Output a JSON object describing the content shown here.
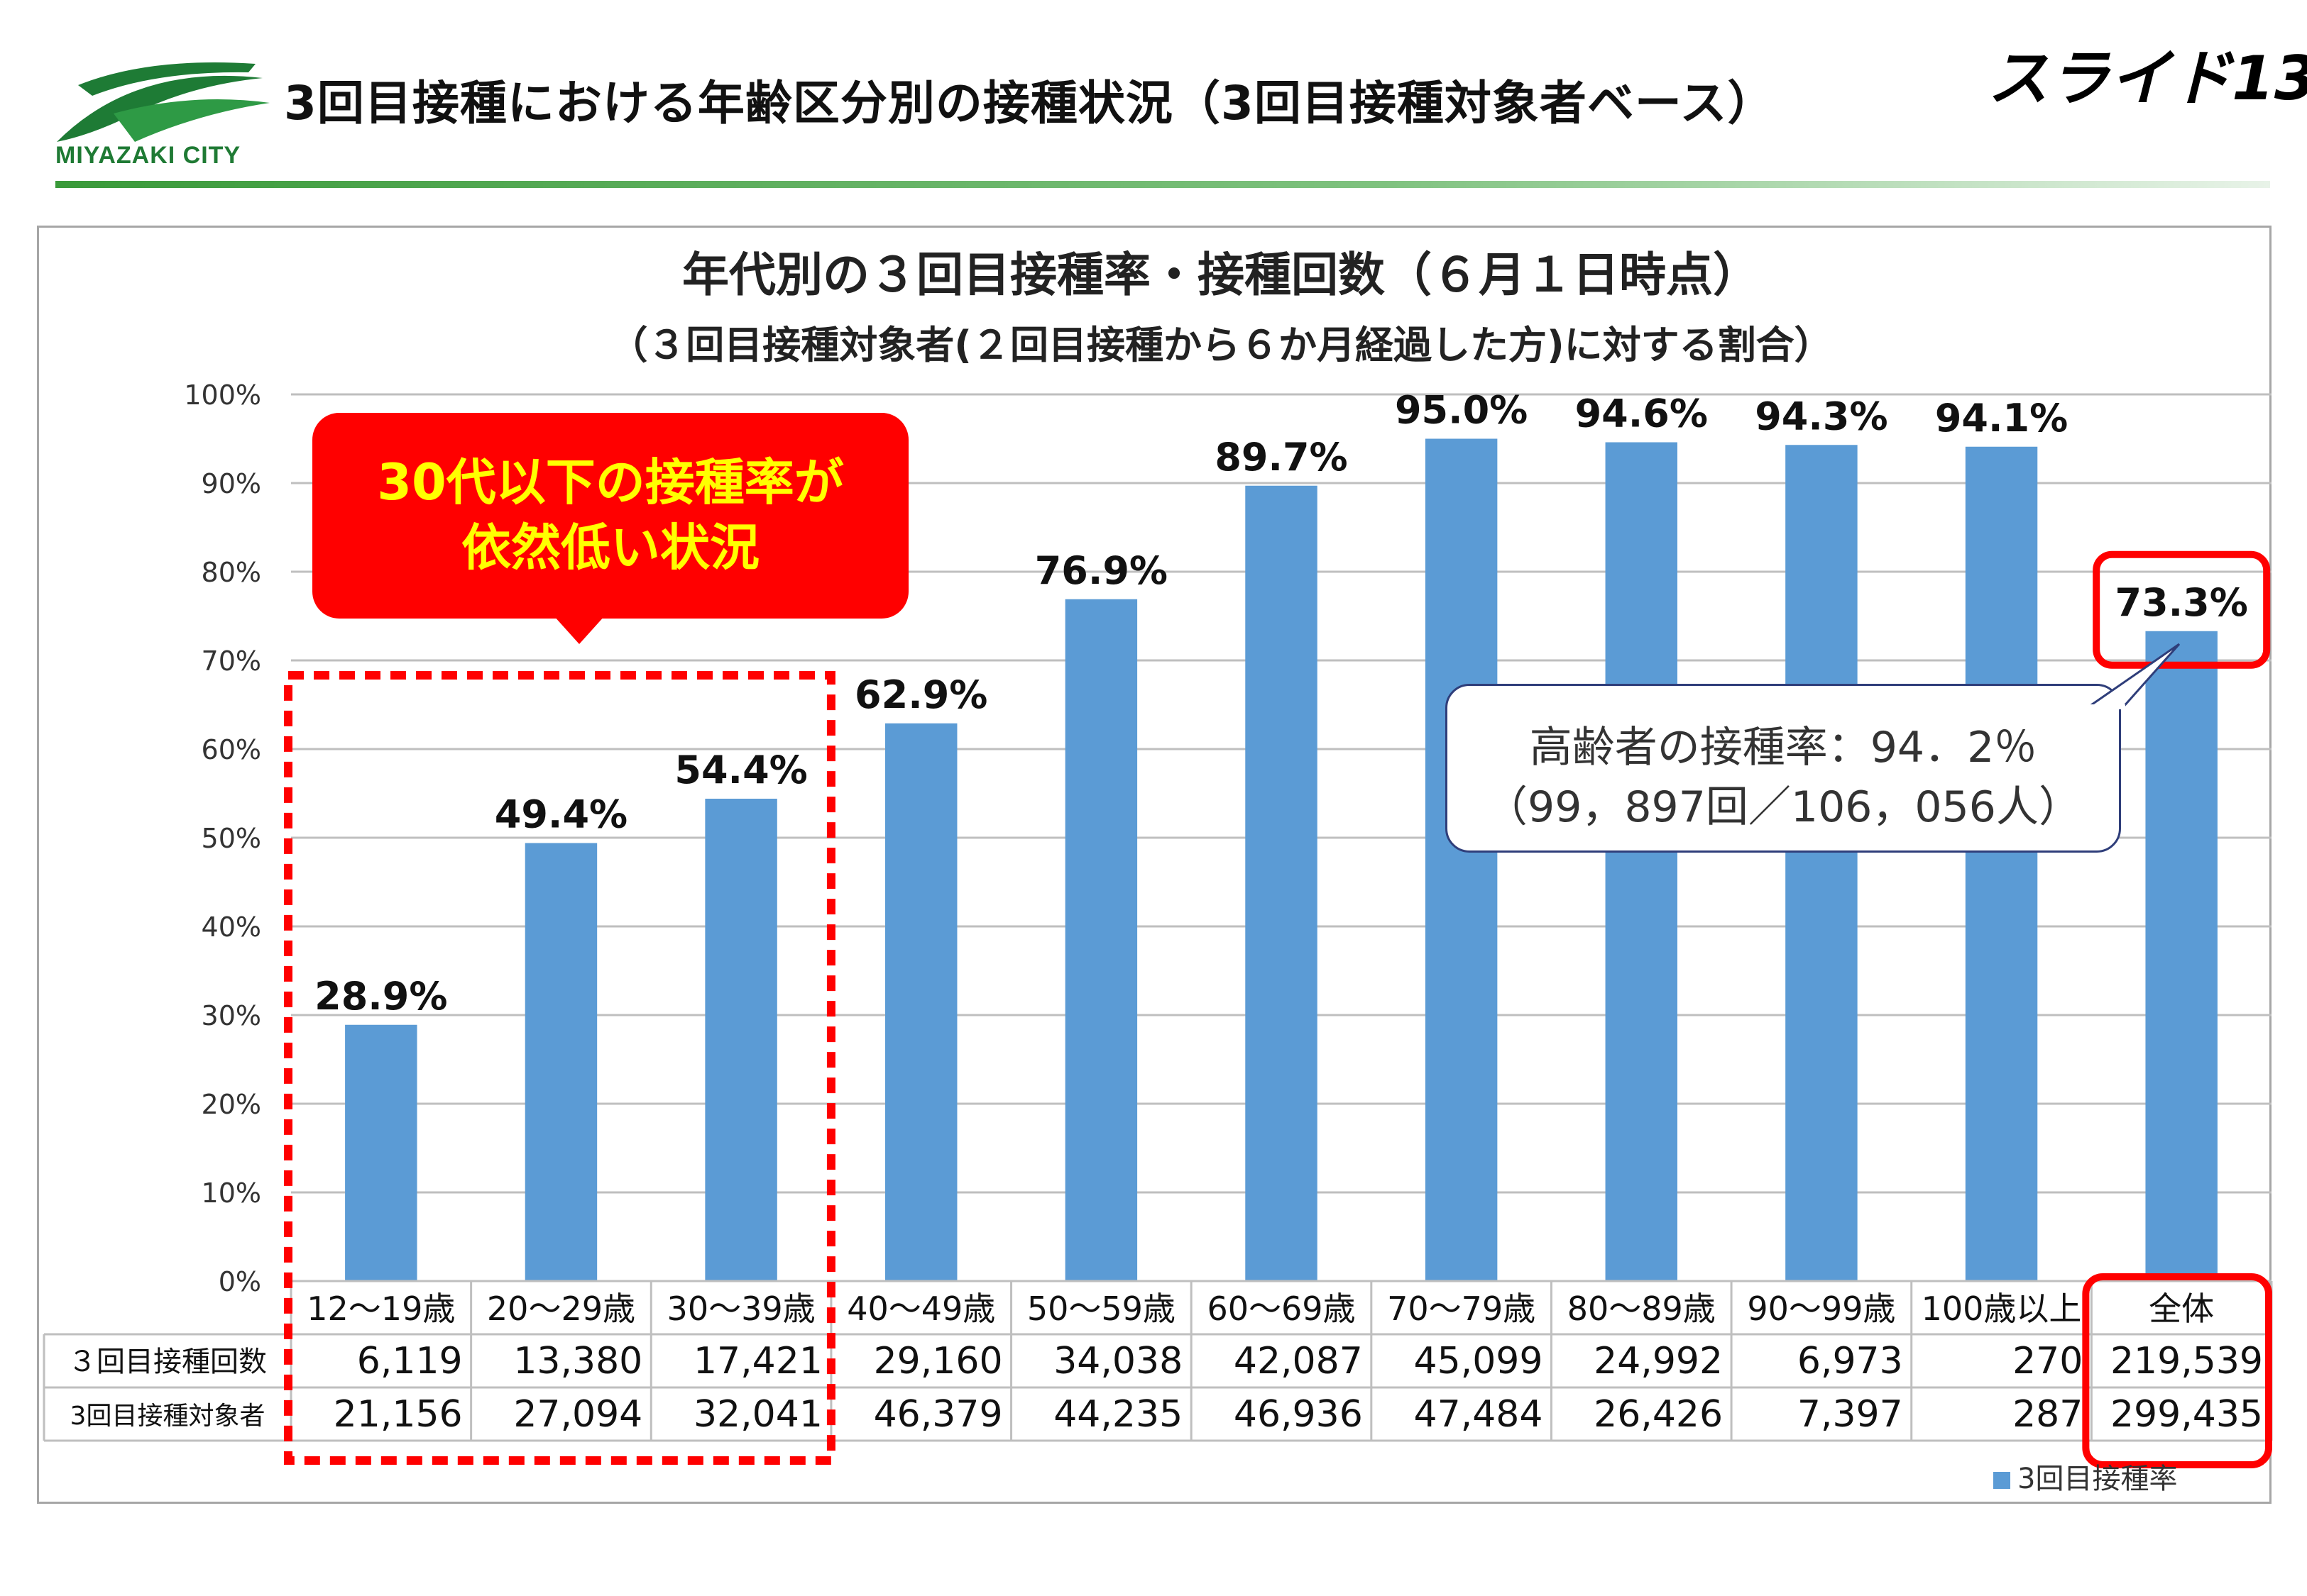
{
  "header": {
    "title": "3回目接種における年齢区分別の接種状況（3回目接種対象者ベース）",
    "slide_label": "スライド13",
    "logo_text": "MIYAZAKI CITY"
  },
  "chart_data": {
    "type": "bar",
    "title": "年代別の３回目接種率・接種回数（６月１日時点）",
    "subtitle": "（３回目接種対象者(２回目接種から６か月経過した方)に対する割合）",
    "categories": [
      "12～19歳",
      "20～29歳",
      "30～39歳",
      "40～49歳",
      "50～59歳",
      "60～69歳",
      "70～79歳",
      "80～89歳",
      "90～99歳",
      "100歳以上",
      "全体"
    ],
    "series": [
      {
        "name": "3回目接種率",
        "values": [
          28.9,
          49.4,
          54.4,
          62.9,
          76.9,
          89.7,
          95.0,
          94.6,
          94.3,
          94.1,
          73.3
        ],
        "color": "#5b9bd5"
      }
    ],
    "data_labels": [
      "28.9%",
      "49.4%",
      "54.4%",
      "62.9%",
      "76.9%",
      "89.7%",
      "95.0%",
      "94.6%",
      "94.3%",
      "94.1%",
      "73.3%"
    ],
    "ylim": [
      0,
      100
    ],
    "yticks": [
      "0%",
      "10%",
      "20%",
      "30%",
      "40%",
      "50%",
      "60%",
      "70%",
      "80%",
      "90%",
      "100%"
    ],
    "grid": true,
    "legend_position": "bottom-right",
    "table": {
      "rows": [
        {
          "label": "３回目接種回数",
          "values": [
            "6,119",
            "13,380",
            "17,421",
            "29,160",
            "34,038",
            "42,087",
            "45,099",
            "24,992",
            "6,973",
            "270",
            "219,539"
          ]
        },
        {
          "label": "3回目接種対象者",
          "values": [
            "21,156",
            "27,094",
            "32,041",
            "46,379",
            "44,235",
            "46,936",
            "47,484",
            "26,426",
            "7,397",
            "287",
            "299,435"
          ]
        }
      ]
    }
  },
  "annotations": {
    "red_callout": [
      "30代以下の接種率が",
      "依然低い状況"
    ],
    "elderly_callout": [
      "高齢者の接種率：94．2％",
      "（99，897回／106，056人）"
    ],
    "highlight_color": "#ff0000",
    "callout_text_color": "#ffff00"
  }
}
